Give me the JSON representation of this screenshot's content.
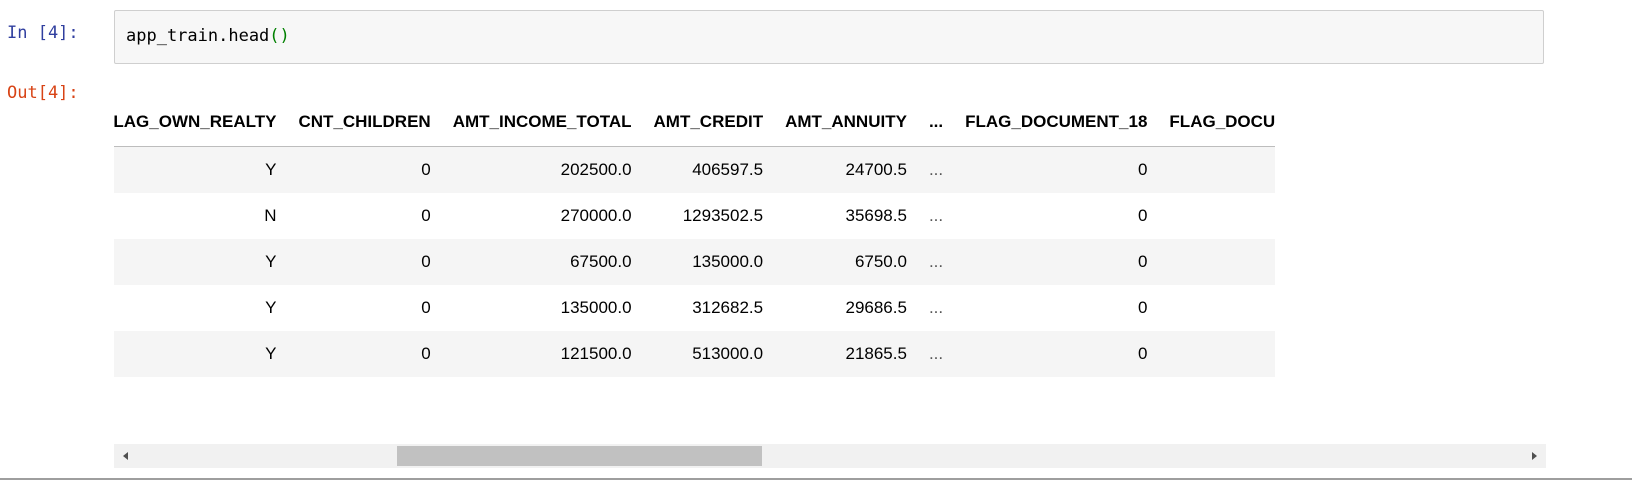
{
  "input_cell": {
    "prompt": "In [4]:",
    "code_name": "app_train.head",
    "code_parens": "()"
  },
  "output_cell": {
    "prompt": "Out[4]:"
  },
  "dataframe": {
    "columns": [
      "FLAG_OWN_REALTY",
      "CNT_CHILDREN",
      "AMT_INCOME_TOTAL",
      "AMT_CREDIT",
      "AMT_ANNUITY",
      "...",
      "FLAG_DOCUMENT_18",
      "FLAG_DOCU"
    ],
    "rows": [
      [
        "Y",
        "0",
        "202500.0",
        "406597.5",
        "24700.5",
        "...",
        "0",
        ""
      ],
      [
        "N",
        "0",
        "270000.0",
        "1293502.5",
        "35698.5",
        "...",
        "0",
        ""
      ],
      [
        "Y",
        "0",
        "67500.0",
        "135000.0",
        "6750.0",
        "...",
        "0",
        ""
      ],
      [
        "Y",
        "0",
        "135000.0",
        "312682.5",
        "29686.5",
        "...",
        "0",
        ""
      ],
      [
        "Y",
        "0",
        "121500.0",
        "513000.0",
        "21865.5",
        "...",
        "0",
        ""
      ]
    ]
  },
  "scrollbar": {
    "position_fraction": 0.2
  }
}
